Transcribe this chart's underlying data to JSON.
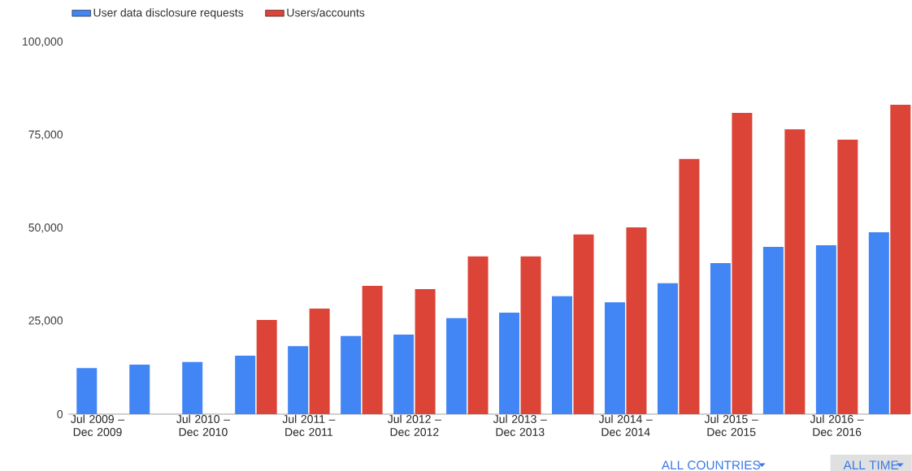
{
  "chart_data": {
    "type": "bar",
    "categories": [
      "Jul 2009 – Dec 2009",
      null,
      "Jul 2010 – Dec 2010",
      null,
      "Jul 2011 – Dec 2011",
      null,
      "Jul 2012 – Dec 2012",
      null,
      "Jul 2013 – Dec 2013",
      null,
      "Jul 2014 – Dec 2014",
      null,
      "Jul 2015 – Dec 2015",
      null,
      "Jul 2016 – Dec 2016",
      null
    ],
    "series": [
      {
        "name": "User data disclosure requests",
        "color": "#4285f4",
        "values": [
          12400,
          13300,
          14000,
          15700,
          18300,
          21000,
          21400,
          25800,
          27300,
          31700,
          30100,
          35200,
          40600,
          45000,
          45400,
          48900
        ]
      },
      {
        "name": "Users/accounts",
        "color": "#db4437",
        "values": [
          null,
          null,
          null,
          25300,
          28400,
          34500,
          33600,
          42400,
          42400,
          48300,
          50200,
          68600,
          81000,
          76600,
          73800,
          83200
        ]
      }
    ],
    "ylim": [
      0,
      100000
    ],
    "yticks": [
      0,
      {
        "value": 25000,
        "label": "25,000"
      },
      {
        "value": 50000,
        "label": "50,000"
      },
      {
        "value": 75000,
        "label": "75,000"
      },
      {
        "value": 100000,
        "label": "100,000"
      }
    ],
    "legend": "top left",
    "annotations": [
      "ALL COUNTRIES",
      "ALL TIME"
    ]
  }
}
